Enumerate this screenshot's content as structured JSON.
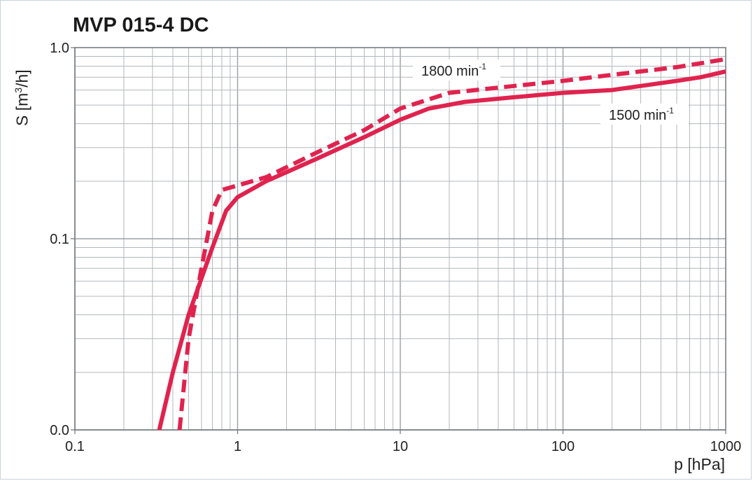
{
  "chart_data": {
    "type": "line",
    "title": "MVP 015-4 DC",
    "ylabel_prefix": "S  [m",
    "ylabel_sup": "3",
    "ylabel_suffix": "/h]",
    "xlabel": "p [hPa]",
    "xscale": "log",
    "yscale": "log",
    "xlim": [
      0.1,
      1000
    ],
    "ylim": [
      0.01,
      1.0
    ],
    "xticks": [
      0.1,
      1,
      10,
      100,
      1000
    ],
    "xtick_labels": [
      "0.1",
      "1",
      "10",
      "100",
      "1000"
    ],
    "yticks": [
      0.01,
      0.1,
      1.0
    ],
    "ytick_labels": [
      "0.0",
      "0.1",
      "1.0"
    ],
    "grid": true,
    "series": [
      {
        "name_main": "1800 min",
        "name_sup": "-1",
        "style": "dashed",
        "color": "#e0234e",
        "points": [
          [
            0.44,
            0.01
          ],
          [
            0.5,
            0.03
          ],
          [
            0.6,
            0.07
          ],
          [
            0.7,
            0.14
          ],
          [
            0.8,
            0.18
          ],
          [
            1.0,
            0.19
          ],
          [
            1.5,
            0.21
          ],
          [
            3,
            0.28
          ],
          [
            6,
            0.37
          ],
          [
            10,
            0.48
          ],
          [
            20,
            0.58
          ],
          [
            50,
            0.63
          ],
          [
            100,
            0.67
          ],
          [
            200,
            0.72
          ],
          [
            500,
            0.79
          ],
          [
            1000,
            0.87
          ]
        ]
      },
      {
        "name_main": "1500 min",
        "name_sup": "-1",
        "style": "solid",
        "color": "#e0234e",
        "points": [
          [
            0.33,
            0.01
          ],
          [
            0.4,
            0.02
          ],
          [
            0.5,
            0.04
          ],
          [
            0.7,
            0.09
          ],
          [
            0.85,
            0.14
          ],
          [
            1.0,
            0.165
          ],
          [
            1.5,
            0.2
          ],
          [
            3,
            0.26
          ],
          [
            6,
            0.34
          ],
          [
            10,
            0.42
          ],
          [
            15,
            0.48
          ],
          [
            25,
            0.52
          ],
          [
            50,
            0.55
          ],
          [
            100,
            0.58
          ],
          [
            200,
            0.6
          ],
          [
            300,
            0.63
          ],
          [
            500,
            0.67
          ],
          [
            700,
            0.7
          ],
          [
            1000,
            0.75
          ]
        ]
      }
    ]
  }
}
